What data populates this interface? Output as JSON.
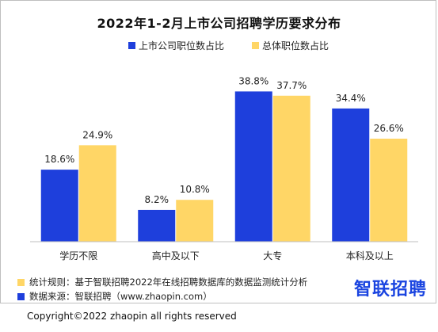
{
  "title": "2022年1-2月上市公司招聘学历要求分布",
  "colors": {
    "listed": "#1e3fdc",
    "overall": "#ffd666",
    "axis": "#bfbfbf"
  },
  "chart_data": {
    "type": "bar",
    "categories": [
      "学历不限",
      "高中及以下",
      "大专",
      "本科及以上"
    ],
    "series": [
      {
        "name": "上市公司职位数占比",
        "values": [
          18.6,
          8.2,
          38.8,
          34.4
        ],
        "labels": [
          "18.6%",
          "8.2%",
          "38.8%",
          "34.4%"
        ]
      },
      {
        "name": "总体职位数占比",
        "values": [
          24.9,
          10.8,
          37.7,
          26.6
        ],
        "labels": [
          "24.9%",
          "10.8%",
          "37.7%",
          "26.6%"
        ]
      }
    ],
    "ylim": [
      0,
      44
    ],
    "legend": "top-center",
    "grid": false
  },
  "notes": {
    "rule": "统计规则：基于智联招聘2022年在线招聘数据库的数据监测统计分析",
    "source": "数据来源：智联招聘（www.zhaopin.com）"
  },
  "brand": "智联招聘",
  "copyright": "Copyright©2022 zhaopin all rights reserved"
}
